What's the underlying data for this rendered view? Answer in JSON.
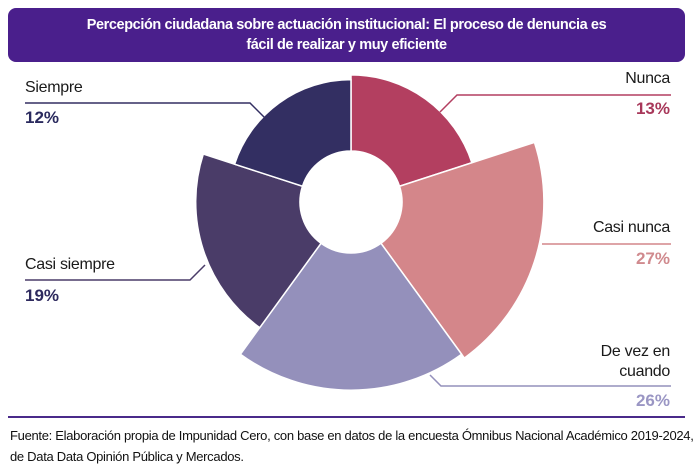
{
  "chart_data": {
    "type": "pie",
    "variant": "polar-area-donut",
    "title": "Percepción ciudadana sobre actuación institucional: El proceso de denuncia es fácil de realizar y muy eficiente",
    "categories": [
      "Nunca",
      "Casi nunca",
      "De vez en cuando",
      "Casi siempre",
      "Siempre"
    ],
    "values": [
      13,
      27,
      26,
      19,
      12
    ],
    "value_labels": [
      "13%",
      "27%",
      "26%",
      "19%",
      "12%"
    ],
    "unit": "%",
    "colors": [
      "#b33f60",
      "#d4868a",
      "#9490bb",
      "#4a3c68",
      "#332f62"
    ],
    "label_colors": [
      "#a8385a",
      "#d08a8e",
      "#9a96c4",
      "#2e2a5e",
      "#2a2a5e"
    ]
  },
  "footer": {
    "source": "Fuente: Elaboración propia de Impunidad Cero, con base en datos de la encuesta Ómnibus Nacional Académico 2019-2024, de Data Data Opinión Pública y Mercados."
  }
}
